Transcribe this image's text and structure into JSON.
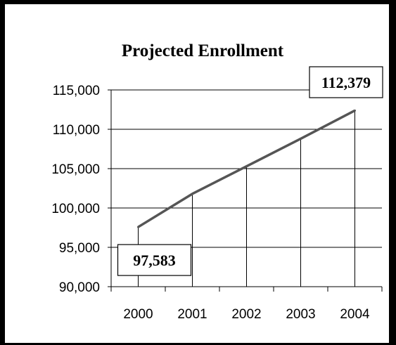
{
  "chart_data": {
    "type": "line",
    "title": "Projected Enrollment",
    "xlabel": "",
    "ylabel": "",
    "categories": [
      "2000",
      "2001",
      "2002",
      "2003",
      "2004"
    ],
    "series": [
      {
        "values": [
          97583,
          101800,
          105300,
          108800,
          112379
        ],
        "color": "#555555"
      }
    ],
    "ylim": [
      90000,
      115000
    ],
    "yticks": [
      90000,
      95000,
      100000,
      105000,
      110000,
      115000
    ],
    "ytick_labels": [
      "90,000",
      "95,000",
      "100,000",
      "105,000",
      "110,000",
      "115,000"
    ],
    "grid": true,
    "drop_lines": true,
    "callouts": [
      {
        "category": "2000",
        "label": "97,583"
      },
      {
        "category": "2004",
        "label": "112,379"
      }
    ]
  }
}
